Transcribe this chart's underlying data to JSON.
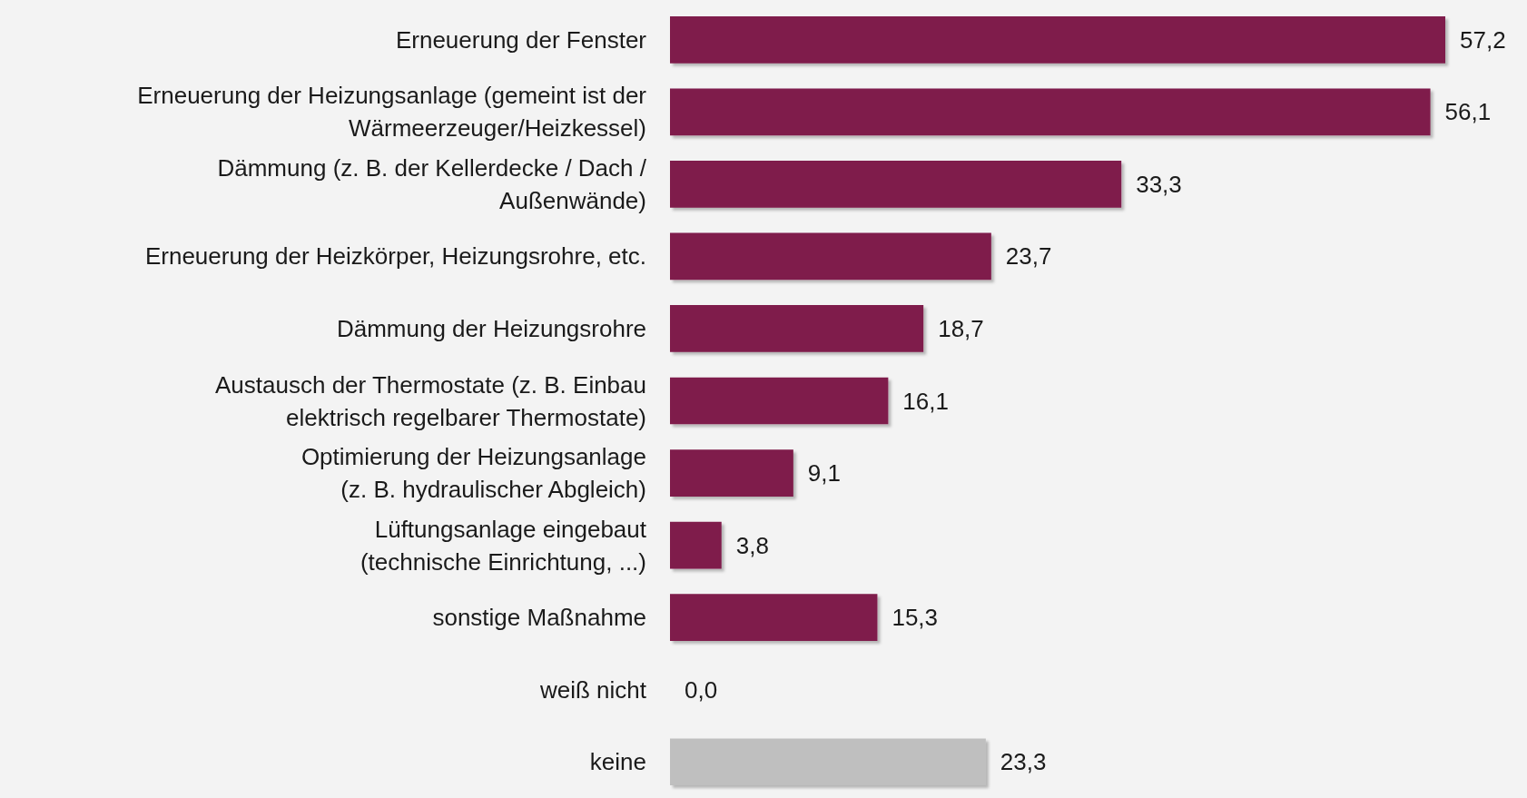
{
  "chart_data": {
    "type": "bar",
    "orientation": "horizontal",
    "categories": [
      "Erneuerung der Fenster",
      "Erneuerung der Heizungsanlage (gemeint ist der\nWärmeerzeuger/Heizkessel)",
      "Dämmung (z. B. der Kellerdecke / Dach /\nAußenwände)",
      "Erneuerung der Heizkörper, Heizungsrohre, etc.",
      "Dämmung der Heizungsrohre",
      "Austausch der Thermostate (z. B. Einbau\nelektrisch regelbarer Thermostate)",
      "Optimierung der Heizungsanlage\n(z. B. hydraulischer Abgleich)",
      "Lüftungsanlage eingebaut\n(technische Einrichtung, ...)",
      "sonstige Maßnahme",
      "weiß nicht",
      "keine"
    ],
    "values": [
      57.2,
      56.1,
      33.3,
      23.7,
      18.7,
      16.1,
      9.1,
      3.8,
      15.3,
      0.0,
      23.3
    ],
    "value_labels": [
      "57,2",
      "56,1",
      "33,3",
      "23,7",
      "18,7",
      "16,1",
      "9,1",
      "3,8",
      "15,3",
      "0,0",
      "23,3"
    ],
    "colors": [
      "#7f1c4b",
      "#7f1c4b",
      "#7f1c4b",
      "#7f1c4b",
      "#7f1c4b",
      "#7f1c4b",
      "#7f1c4b",
      "#7f1c4b",
      "#7f1c4b",
      "#bfbfbf",
      "#bfbfbf"
    ]
  }
}
